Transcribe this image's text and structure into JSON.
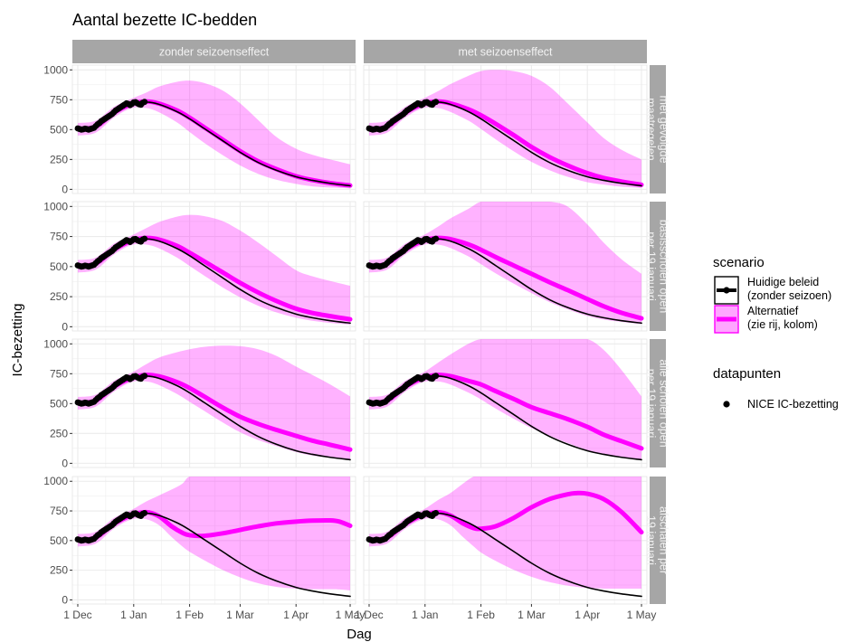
{
  "chart_data": {
    "type": "line",
    "title": "Aantal bezette IC-bedden",
    "xlabel": "Dag",
    "ylabel": "IC-bezetting",
    "x_ticks": [
      "1 Dec",
      "1 Jan",
      "1 Feb",
      "1 Mar",
      "1 Apr",
      "1 May"
    ],
    "x_tick_days": [
      0,
      31,
      62,
      90,
      121,
      151
    ],
    "xlim_days": [
      -3,
      154
    ],
    "y_ticks": [
      0,
      250,
      500,
      750,
      1000
    ],
    "ylim": [
      -35,
      1040
    ],
    "grid": true,
    "columns": [
      "zonder seizoenseffect",
      "met seizoenseffect"
    ],
    "rows": [
      "met gevolgde\nmaatregelen",
      "basisscholen open\nper 19 januari",
      "alle scholen open\nper 19 januari",
      "afschalen per\n19 januari"
    ],
    "colors": {
      "baseline": "#000000",
      "alternative": "#ff00ff",
      "ribbon": "#ff00ff",
      "ribbon_opacity": 0.3,
      "strip_bg": "#a6a6a6",
      "panel_bg": "#ffffff",
      "grid": "#ebebeb"
    },
    "observed": {
      "name": "NICE IC-bezetting",
      "points": [
        [
          0,
          510
        ],
        [
          1,
          505
        ],
        [
          2,
          500
        ],
        [
          3,
          503
        ],
        [
          4,
          508
        ],
        [
          5,
          505
        ],
        [
          6,
          500
        ],
        [
          7,
          505
        ],
        [
          8,
          510
        ],
        [
          9,
          515
        ],
        [
          10,
          530
        ],
        [
          11,
          545
        ],
        [
          12,
          555
        ],
        [
          13,
          570
        ],
        [
          14,
          580
        ],
        [
          15,
          590
        ],
        [
          16,
          600
        ],
        [
          17,
          610
        ],
        [
          18,
          620
        ],
        [
          19,
          630
        ],
        [
          20,
          645
        ],
        [
          21,
          660
        ],
        [
          22,
          670
        ],
        [
          23,
          680
        ],
        [
          24,
          690
        ],
        [
          25,
          700
        ],
        [
          26,
          710
        ],
        [
          27,
          720
        ],
        [
          28,
          715
        ],
        [
          29,
          705
        ],
        [
          30,
          715
        ],
        [
          31,
          728
        ],
        [
          32,
          730
        ],
        [
          33,
          720
        ],
        [
          34,
          712
        ],
        [
          35,
          708
        ],
        [
          36,
          725
        ],
        [
          37,
          732
        ]
      ]
    },
    "baseline": {
      "name": "Huidige beleid\n(zonder seizoen)",
      "x": [
        0,
        10,
        20,
        30,
        38,
        45,
        55,
        62,
        70,
        80,
        90,
        100,
        110,
        121,
        130,
        140,
        151
      ],
      "y": [
        505,
        525,
        640,
        715,
        730,
        712,
        650,
        590,
        510,
        410,
        310,
        225,
        160,
        105,
        75,
        50,
        30
      ]
    },
    "panels": [
      {
        "row": 0,
        "col": 0,
        "alt_x": [
          0,
          10,
          20,
          30,
          38,
          45,
          55,
          62,
          70,
          80,
          90,
          100,
          110,
          121,
          130,
          140,
          151
        ],
        "alt_y": [
          505,
          525,
          640,
          715,
          735,
          718,
          660,
          600,
          520,
          420,
          320,
          235,
          170,
          110,
          78,
          52,
          32
        ],
        "lo": [
          450,
          475,
          600,
          680,
          680,
          645,
          560,
          480,
          390,
          290,
          200,
          130,
          80,
          45,
          25,
          15,
          8
        ],
        "hi": [
          555,
          575,
          690,
          760,
          810,
          860,
          900,
          910,
          890,
          830,
          720,
          580,
          440,
          340,
          290,
          250,
          210
        ]
      },
      {
        "row": 0,
        "col": 1,
        "alt_x": [
          0,
          10,
          20,
          30,
          38,
          45,
          55,
          62,
          70,
          80,
          90,
          100,
          110,
          121,
          130,
          140,
          151
        ],
        "alt_y": [
          505,
          525,
          640,
          715,
          735,
          720,
          670,
          620,
          550,
          455,
          355,
          270,
          200,
          135,
          95,
          65,
          38
        ],
        "lo": [
          450,
          475,
          600,
          680,
          680,
          648,
          575,
          505,
          420,
          320,
          230,
          160,
          105,
          60,
          40,
          22,
          12
        ],
        "hi": [
          555,
          575,
          690,
          760,
          820,
          880,
          950,
          990,
          1000,
          990,
          950,
          860,
          720,
          560,
          430,
          330,
          250
        ]
      },
      {
        "row": 1,
        "col": 0,
        "alt_x": [
          0,
          10,
          20,
          30,
          38,
          45,
          55,
          62,
          70,
          80,
          90,
          100,
          110,
          121,
          130,
          140,
          151
        ],
        "alt_y": [
          505,
          525,
          640,
          715,
          738,
          725,
          672,
          615,
          545,
          455,
          365,
          285,
          215,
          150,
          115,
          88,
          62
        ],
        "lo": [
          450,
          475,
          600,
          680,
          683,
          652,
          575,
          505,
          425,
          330,
          245,
          175,
          120,
          75,
          50,
          32,
          18
        ],
        "hi": [
          555,
          575,
          690,
          760,
          820,
          870,
          915,
          930,
          920,
          880,
          800,
          700,
          590,
          470,
          420,
          380,
          340
        ]
      },
      {
        "row": 1,
        "col": 1,
        "alt_x": [
          0,
          10,
          20,
          30,
          38,
          45,
          55,
          62,
          70,
          80,
          90,
          100,
          110,
          121,
          130,
          140,
          151
        ],
        "alt_y": [
          505,
          525,
          640,
          715,
          738,
          728,
          685,
          640,
          580,
          510,
          440,
          370,
          305,
          230,
          170,
          115,
          70
        ],
        "lo": [
          450,
          475,
          600,
          680,
          683,
          655,
          585,
          520,
          445,
          360,
          280,
          205,
          145,
          90,
          60,
          40,
          22
        ],
        "hi": [
          555,
          575,
          690,
          760,
          830,
          900,
          980,
          1040,
          1040,
          1040,
          1040,
          1040,
          1000,
          850,
          700,
          560,
          440
        ]
      },
      {
        "row": 2,
        "col": 0,
        "alt_x": [
          0,
          10,
          20,
          30,
          38,
          45,
          55,
          62,
          70,
          80,
          90,
          100,
          110,
          121,
          130,
          140,
          151
        ],
        "alt_y": [
          505,
          525,
          640,
          715,
          740,
          728,
          680,
          630,
          560,
          470,
          390,
          330,
          280,
          230,
          190,
          155,
          115
        ],
        "lo": [
          450,
          475,
          600,
          680,
          685,
          655,
          580,
          515,
          440,
          345,
          260,
          195,
          145,
          95,
          65,
          45,
          25
        ],
        "hi": [
          555,
          575,
          690,
          760,
          830,
          885,
          930,
          955,
          975,
          985,
          980,
          955,
          900,
          810,
          740,
          660,
          560
        ]
      },
      {
        "row": 2,
        "col": 1,
        "alt_x": [
          0,
          10,
          20,
          30,
          38,
          45,
          55,
          62,
          70,
          80,
          90,
          100,
          110,
          121,
          130,
          140,
          151
        ],
        "alt_y": [
          505,
          525,
          640,
          715,
          740,
          730,
          690,
          660,
          605,
          540,
          470,
          420,
          370,
          305,
          240,
          185,
          125
        ],
        "lo": [
          450,
          475,
          600,
          680,
          685,
          660,
          592,
          535,
          460,
          375,
          295,
          230,
          170,
          110,
          75,
          50,
          28
        ],
        "hi": [
          555,
          575,
          690,
          760,
          840,
          910,
          1000,
          1040,
          1040,
          1040,
          1040,
          1040,
          1040,
          1040,
          950,
          780,
          560
        ]
      },
      {
        "row": 3,
        "col": 0,
        "alt_x": [
          0,
          10,
          20,
          30,
          38,
          45,
          52,
          58,
          62,
          70,
          80,
          90,
          100,
          110,
          121,
          130,
          140,
          145,
          151
        ],
        "alt_y": [
          505,
          525,
          640,
          715,
          740,
          705,
          620,
          565,
          545,
          540,
          560,
          590,
          620,
          645,
          660,
          668,
          670,
          660,
          625
        ],
        "lo": [
          450,
          475,
          600,
          680,
          680,
          630,
          530,
          450,
          405,
          335,
          255,
          190,
          140,
          110,
          95,
          90,
          90,
          88,
          80
        ],
        "hi": [
          555,
          575,
          690,
          760,
          830,
          880,
          930,
          980,
          1040,
          1040,
          1040,
          1040,
          1040,
          1040,
          1040,
          1040,
          1040,
          1040,
          1040
        ]
      },
      {
        "row": 3,
        "col": 1,
        "alt_x": [
          0,
          10,
          20,
          30,
          38,
          45,
          52,
          58,
          62,
          70,
          80,
          90,
          100,
          110,
          115,
          121,
          130,
          140,
          151
        ],
        "alt_y": [
          505,
          525,
          640,
          715,
          740,
          712,
          645,
          605,
          600,
          620,
          690,
          780,
          850,
          890,
          900,
          895,
          850,
          740,
          570
        ],
        "lo": [
          450,
          475,
          600,
          680,
          680,
          630,
          530,
          450,
          400,
          330,
          255,
          195,
          150,
          120,
          110,
          100,
          95,
          95,
          95
        ],
        "hi": [
          555,
          575,
          690,
          760,
          840,
          900,
          980,
          1040,
          1040,
          1040,
          1040,
          1040,
          1040,
          1040,
          1040,
          1040,
          1040,
          1040,
          1040
        ]
      }
    ],
    "legend": {
      "scenario_title": "scenario",
      "scenario_items": [
        {
          "key": "baseline",
          "lines": [
            "Huidige beleid",
            " (zonder seizoen)"
          ]
        },
        {
          "key": "alternative",
          "lines": [
            "Alternatief",
            " (zie rij, kolom)"
          ]
        }
      ],
      "data_title": "datapunten",
      "data_item": "NICE IC-bezetting",
      "placement": "right"
    }
  }
}
